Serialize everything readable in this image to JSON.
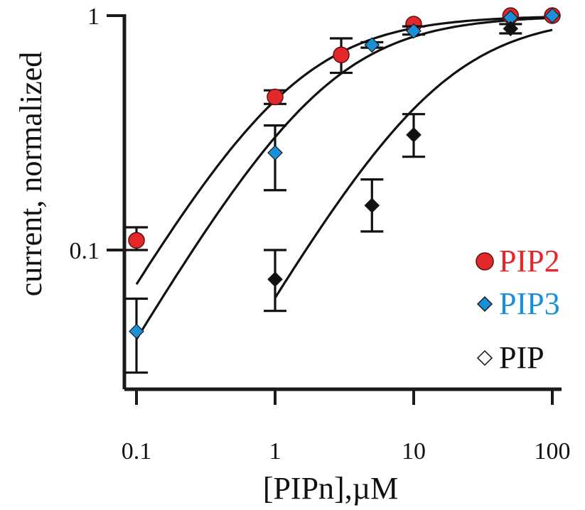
{
  "chart_data": {
    "type": "scatter",
    "x_scale": "log",
    "y_scale": "log",
    "xlabel": "[PIPn],µM",
    "ylabel": "current, normalized",
    "xlim": [
      0.1,
      100
    ],
    "ylim": [
      0.03,
      1
    ],
    "x_ticks": [
      {
        "value": 0.1,
        "label": "0.1"
      },
      {
        "value": 1,
        "label": "1"
      },
      {
        "value": 10,
        "label": "10"
      },
      {
        "value": 100,
        "label": "100"
      }
    ],
    "y_ticks": [
      {
        "value": 0.1,
        "label": "0.1"
      },
      {
        "value": 1,
        "label": "1"
      }
    ],
    "legend_position": "bottom-right",
    "series": [
      {
        "name": "PIP2",
        "marker": "circle",
        "color": "#e4282a",
        "points": [
          {
            "x": 0.1,
            "y": 0.11,
            "err_low": 0.1,
            "err_high": 0.125
          },
          {
            "x": 1,
            "y": 0.45,
            "err_low": 0.42,
            "err_high": 0.48
          },
          {
            "x": 3,
            "y": 0.68,
            "err_low": 0.57,
            "err_high": 0.8
          },
          {
            "x": 10,
            "y": 0.92
          },
          {
            "x": 50,
            "y": 1.0
          },
          {
            "x": 100,
            "y": 1.0
          }
        ],
        "fit": {
          "ec50": 1.3,
          "hill": 1.0
        }
      },
      {
        "name": "PIP3",
        "marker": "diamond",
        "color": "#1a8fd8",
        "points": [
          {
            "x": 0.1,
            "y": 0.045,
            "err_low": 0.03,
            "err_high": 0.062
          },
          {
            "x": 1,
            "y": 0.26,
            "err_low": 0.18,
            "err_high": 0.34
          },
          {
            "x": 5,
            "y": 0.75,
            "err_low": 0.73,
            "err_high": 0.77
          },
          {
            "x": 10,
            "y": 0.86,
            "err_low": 0.83,
            "err_high": 0.9
          },
          {
            "x": 50,
            "y": 0.98
          },
          {
            "x": 100,
            "y": 1.0
          }
        ],
        "fit": {
          "ec50": 2.3,
          "hill": 1.0
        }
      },
      {
        "name": "PIP",
        "marker": "diamond",
        "color": "#111111",
        "points": [
          {
            "x": 1,
            "y": 0.075,
            "err_low": 0.055,
            "err_high": 0.1
          },
          {
            "x": 5,
            "y": 0.155,
            "err_low": 0.12,
            "err_high": 0.2
          },
          {
            "x": 10,
            "y": 0.31,
            "err_low": 0.25,
            "err_high": 0.38
          },
          {
            "x": 50,
            "y": 0.88,
            "err_low": 0.84,
            "err_high": 0.92
          }
        ],
        "fit": {
          "ec50": 15,
          "hill": 1.0
        }
      }
    ],
    "fit_curves": [
      {
        "ec50": 1.3,
        "hill": 1.0,
        "x_from": 0.1,
        "x_to": 100
      },
      {
        "ec50": 2.3,
        "hill": 1.0,
        "x_from": 0.1,
        "x_to": 100
      },
      {
        "ec50": 15,
        "hill": 1.0,
        "x_from": 1,
        "x_to": 100
      }
    ]
  }
}
